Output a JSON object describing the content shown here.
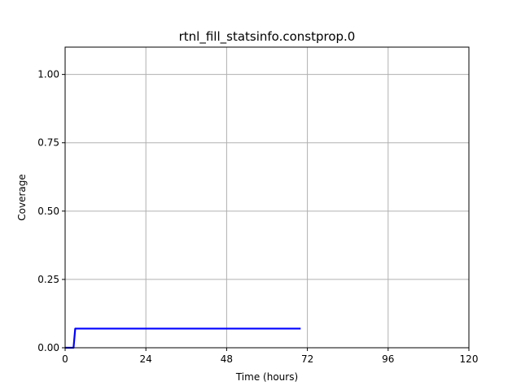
{
  "chart_data": {
    "type": "line",
    "title": "rtnl_fill_statsinfo.constprop.0",
    "xlabel": "Time (hours)",
    "ylabel": "Coverage",
    "xlim": [
      0,
      120
    ],
    "ylim": [
      0,
      1.1
    ],
    "xticks": [
      0,
      24,
      48,
      72,
      96,
      120
    ],
    "xtick_labels": [
      "0",
      "24",
      "48",
      "72",
      "96",
      "120"
    ],
    "yticks": [
      0,
      0.25,
      0.5,
      0.75,
      1.0
    ],
    "ytick_labels": [
      "0.00",
      "0.25",
      "0.50",
      "0.75",
      "1.00"
    ],
    "grid": true,
    "series": [
      {
        "color": "#0000ff",
        "x": [
          0,
          2.5,
          3,
          70
        ],
        "y": [
          0,
          0,
          0.07,
          0.07
        ]
      }
    ]
  }
}
